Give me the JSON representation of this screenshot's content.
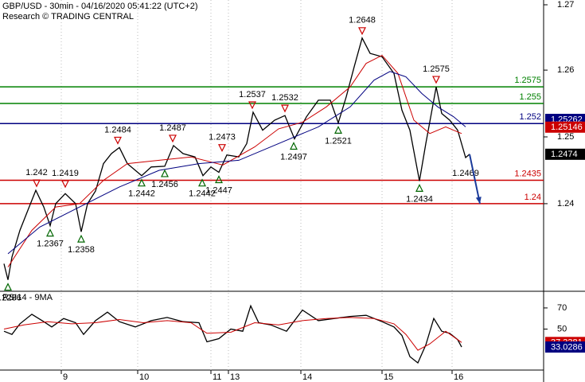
{
  "chart_data": [
    {
      "type": "line",
      "title": "GBP/USD - 30min - 04/16/2020 05:41:22 (UTC+2)",
      "subtitle": "Research © TRADING CENTRAL",
      "xlim": [
        0,
        683
      ],
      "ylim": [
        1.227,
        1.2705
      ],
      "yticks": [
        1.24,
        1.25,
        1.26,
        1.27
      ],
      "xticks": [
        {
          "value": 77,
          "label": "9"
        },
        {
          "value": 173,
          "label": "10"
        },
        {
          "value": 265,
          "label": "11"
        },
        {
          "value": 287,
          "label": "13"
        },
        {
          "value": 378,
          "label": "14"
        },
        {
          "value": 480,
          "label": "15"
        },
        {
          "value": 568,
          "label": "16"
        }
      ],
      "grid": true,
      "series": [
        {
          "color": "#000000",
          "x": [
            5,
            10,
            15,
            25,
            35,
            45,
            55,
            63,
            70,
            82,
            95,
            102,
            110,
            120,
            130,
            140,
            150,
            160,
            178,
            190,
            207,
            218,
            230,
            245,
            255,
            265,
            275,
            285,
            300,
            310,
            318,
            330,
            345,
            358,
            370,
            385,
            400,
            415,
            425,
            435,
            445,
            455,
            465,
            480,
            495,
            505,
            515,
            527,
            535,
            545,
            548,
            555,
            565,
            575,
            585,
            590
          ],
          "values": [
            1.231,
            1.2286,
            1.232,
            1.236,
            1.239,
            1.242,
            1.2395,
            1.2367,
            1.24,
            1.2415,
            1.24,
            1.2358,
            1.24,
            1.2419,
            1.246,
            1.2475,
            1.2484,
            1.246,
            1.2442,
            1.2455,
            1.2456,
            1.2487,
            1.2475,
            1.247,
            1.2442,
            1.2455,
            1.2447,
            1.2473,
            1.247,
            1.249,
            1.2537,
            1.251,
            1.2525,
            1.2532,
            1.2497,
            1.253,
            1.2555,
            1.2555,
            1.2521,
            1.256,
            1.2605,
            1.2648,
            1.2625,
            1.262,
            1.2595,
            1.254,
            1.251,
            1.2434,
            1.249,
            1.2555,
            1.2575,
            1.2535,
            1.2525,
            1.251,
            1.2469,
            1.2474
          ]
        },
        {
          "color": "#cc0000",
          "x": [
            10,
            40,
            70,
            100,
            130,
            160,
            200,
            240,
            280,
            320,
            350,
            380,
            410,
            440,
            460,
            480,
            500,
            520,
            540,
            560,
            580
          ],
          "values": [
            1.2305,
            1.236,
            1.2395,
            1.24,
            1.2435,
            1.246,
            1.2465,
            1.247,
            1.2458,
            1.2485,
            1.2512,
            1.2522,
            1.2545,
            1.2575,
            1.261,
            1.2622,
            1.2595,
            1.2525,
            1.2505,
            1.2515,
            1.2505
          ]
        },
        {
          "color": "#000080",
          "x": [
            10,
            50,
            100,
            150,
            200,
            250,
            300,
            350,
            400,
            440,
            470,
            490,
            510,
            530,
            550,
            570,
            585
          ],
          "values": [
            1.2325,
            1.2365,
            1.2395,
            1.2425,
            1.245,
            1.246,
            1.2465,
            1.249,
            1.2515,
            1.2545,
            1.2585,
            1.2598,
            1.259,
            1.2565,
            1.2545,
            1.253,
            1.2515
          ]
        }
      ],
      "levels": [
        {
          "value": 1.2575,
          "color": "#008000"
        },
        {
          "value": 1.255,
          "color": "#008000"
        },
        {
          "value": 1.252,
          "color": "#000080"
        },
        {
          "value": 1.2435,
          "color": "#cc0000"
        },
        {
          "value": 1.24,
          "color": "#cc0000"
        }
      ],
      "annotations": [
        {
          "x": 10,
          "value": 1.2286,
          "marker": "up"
        },
        {
          "x": 46,
          "value": 1.242,
          "marker": "down"
        },
        {
          "x": 63,
          "value": 1.2367,
          "marker": "up"
        },
        {
          "x": 82,
          "value": 1.2419,
          "marker": "down"
        },
        {
          "x": 102,
          "value": 1.2358,
          "marker": "up"
        },
        {
          "x": 148,
          "value": 1.2484,
          "marker": "down"
        },
        {
          "x": 178,
          "value": 1.2442,
          "marker": "up"
        },
        {
          "x": 207,
          "value": 1.2456,
          "marker": "up"
        },
        {
          "x": 217,
          "value": 1.2487,
          "marker": "down"
        },
        {
          "x": 254,
          "value": 1.2442,
          "marker": "up"
        },
        {
          "x": 275,
          "value": 1.2447,
          "marker": "up"
        },
        {
          "x": 279,
          "value": 1.2473,
          "marker": "down"
        },
        {
          "x": 317,
          "value": 1.2537,
          "marker": "down"
        },
        {
          "x": 358,
          "value": 1.2532,
          "marker": "down"
        },
        {
          "x": 369,
          "value": 1.2497,
          "marker": "up"
        },
        {
          "x": 425,
          "value": 1.2521,
          "marker": "up"
        },
        {
          "x": 455,
          "value": 1.2648,
          "marker": "down"
        },
        {
          "x": 527,
          "value": 1.2434,
          "marker": "up"
        },
        {
          "x": 548,
          "value": 1.2575,
          "marker": "down"
        },
        {
          "x": 585,
          "value": 1.2469,
          "marker": "none"
        }
      ],
      "projection": {
        "x": [
          590,
          603
        ],
        "values": [
          1.2474,
          1.24
        ],
        "color": "#1a3a9a"
      },
      "axis_boxes": [
        {
          "value": 1.25262,
          "color": "#000080"
        },
        {
          "value": 1.25146,
          "color": "#cc0000"
        },
        {
          "value": 1.2474,
          "color": "#000000"
        }
      ]
    },
    {
      "type": "line",
      "title": "RSI14 - 9MA",
      "xlim": [
        0,
        683
      ],
      "ylim": [
        12,
        85
      ],
      "yticks": [
        50,
        70
      ],
      "series": [
        {
          "color": "#000000",
          "x": [
            5,
            15,
            25,
            40,
            55,
            65,
            80,
            95,
            105,
            120,
            135,
            150,
            170,
            190,
            210,
            230,
            250,
            260,
            275,
            290,
            305,
            315,
            325,
            340,
            360,
            380,
            400,
            420,
            440,
            460,
            480,
            495,
            505,
            515,
            525,
            535,
            545,
            555,
            565,
            575,
            580
          ],
          "values": [
            48,
            45,
            55,
            64,
            57,
            52,
            60,
            56,
            45,
            58,
            66,
            57,
            52,
            58,
            61,
            57,
            56,
            38,
            41,
            50,
            48,
            72,
            56,
            54,
            48,
            68,
            58,
            60,
            62,
            63,
            57,
            52,
            44,
            24,
            18,
            35,
            60,
            48,
            46,
            40,
            33.0286
          ]
        },
        {
          "color": "#cc0000",
          "x": [
            5,
            30,
            60,
            90,
            120,
            150,
            180,
            210,
            240,
            260,
            290,
            320,
            350,
            380,
            410,
            440,
            470,
            495,
            510,
            525,
            540,
            560,
            580
          ],
          "values": [
            50,
            54,
            57,
            55,
            56,
            59,
            56,
            58,
            56,
            46,
            47,
            56,
            54,
            58,
            60,
            61,
            60,
            55,
            45,
            30,
            36,
            48,
            37.3381
          ]
        }
      ],
      "axis_boxes": [
        {
          "value": 37.3381,
          "color": "#cc0000"
        },
        {
          "value": 33.0286,
          "color": "#000080"
        }
      ]
    }
  ]
}
